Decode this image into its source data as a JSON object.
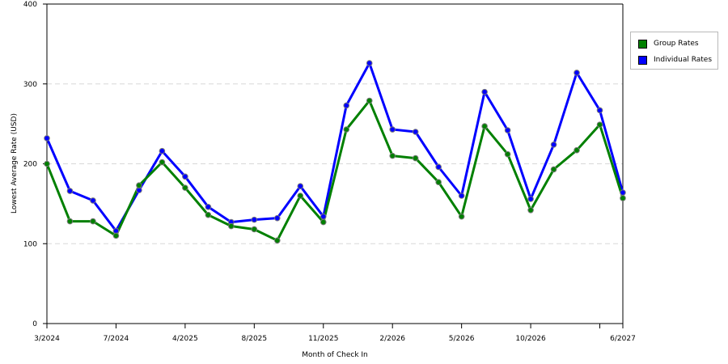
{
  "chart_data": {
    "type": "line",
    "xlabel": "Month of Check In",
    "ylabel": "Lowest Average Rate (USD)",
    "ylim": [
      0,
      400
    ],
    "yticks": [
      0,
      100,
      200,
      300,
      400
    ],
    "grid": "horizontal dashed",
    "legend_position": "right",
    "point_count": 26,
    "x_tick_labels": [
      {
        "index": 0,
        "label": "3/2024"
      },
      {
        "index": 3,
        "label": "7/2024"
      },
      {
        "index": 6,
        "label": "4/2025"
      },
      {
        "index": 9,
        "label": "8/2025"
      },
      {
        "index": 12,
        "label": "11/2025"
      },
      {
        "index": 15,
        "label": "2/2026"
      },
      {
        "index": 18,
        "label": "5/2026"
      },
      {
        "index": 21,
        "label": "10/2026"
      },
      {
        "index": 24,
        "label": ""
      },
      {
        "index": 25,
        "label": "6/2027"
      }
    ],
    "series": [
      {
        "name": "Individual Rates",
        "color": "#0000ff",
        "values": [
          232,
          166,
          154,
          116,
          167,
          216,
          184,
          146,
          127,
          130,
          132,
          172,
          134,
          273,
          326,
          243,
          240,
          196,
          160,
          290,
          242,
          156,
          224,
          314,
          267,
          164
        ]
      },
      {
        "name": "Group Rates",
        "color": "#008000",
        "values": [
          200,
          128,
          128,
          110,
          173,
          202,
          170,
          136,
          122,
          118,
          104,
          160,
          127,
          243,
          279,
          210,
          207,
          177,
          134,
          247,
          212,
          142,
          193,
          217,
          249,
          157
        ]
      }
    ]
  }
}
